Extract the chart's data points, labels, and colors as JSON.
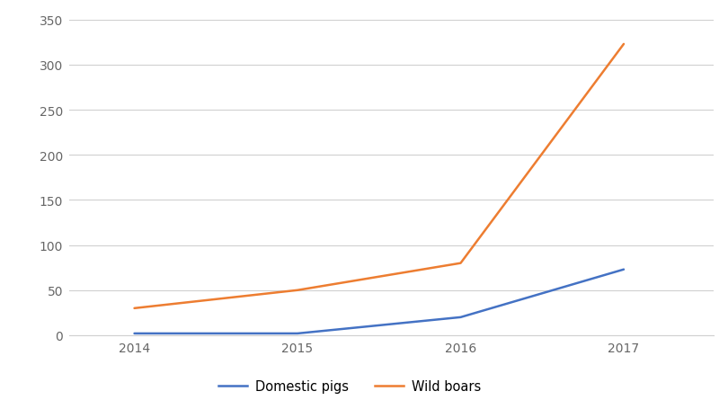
{
  "years": [
    2014,
    2015,
    2016,
    2017
  ],
  "domestic_pigs": [
    2,
    2,
    20,
    73
  ],
  "wild_boars": [
    30,
    50,
    80,
    323
  ],
  "domestic_pigs_color": "#4472C4",
  "wild_boars_color": "#ED7D31",
  "line_width": 1.8,
  "ylim": [
    0,
    350
  ],
  "yticks": [
    0,
    50,
    100,
    150,
    200,
    250,
    300,
    350
  ],
  "xticks": [
    2014,
    2015,
    2016,
    2017
  ],
  "legend_domestic": "Domestic pigs",
  "legend_wild": "Wild boars",
  "background_color": "#ffffff",
  "grid_color": "#d0d0d0",
  "tick_color": "#666666",
  "tick_fontsize": 10,
  "legend_fontsize": 10.5
}
